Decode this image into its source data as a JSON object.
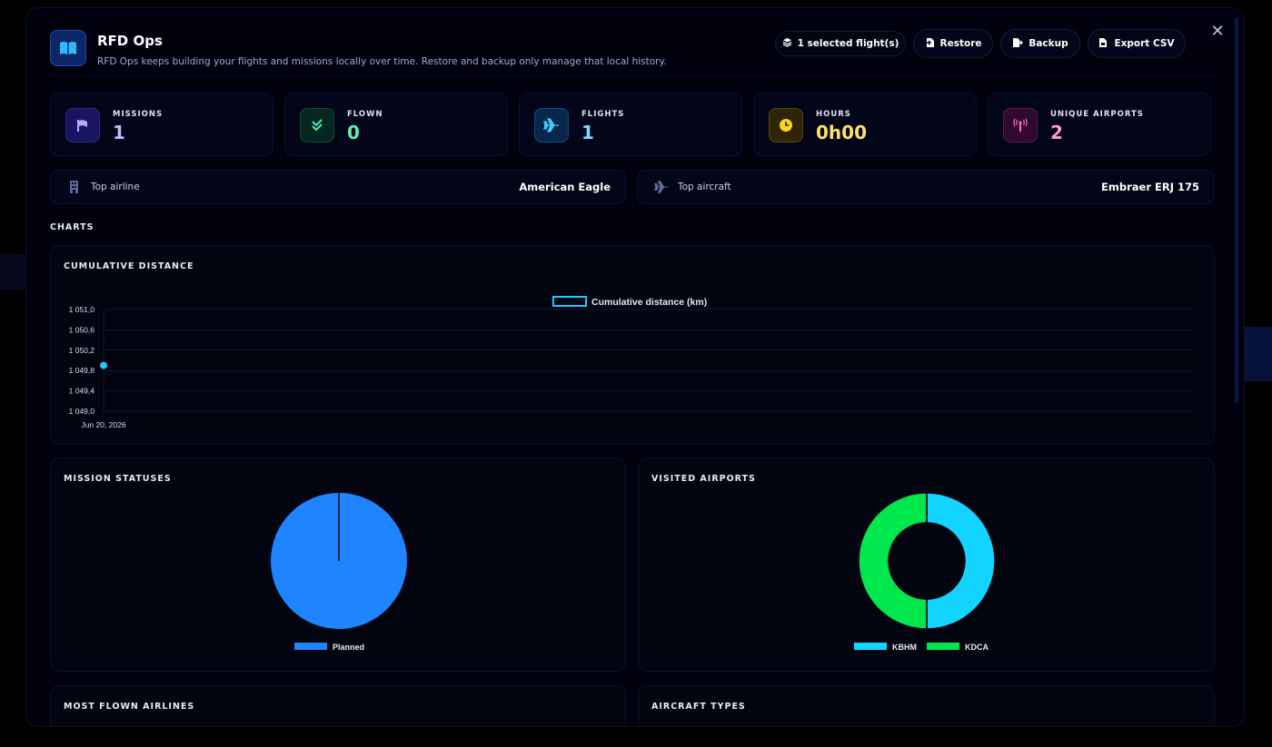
{
  "header": {
    "title": "RFD Ops",
    "subtitle": "RFD Ops keeps building your flights and missions locally over time. Restore and backup only manage that local history.",
    "selected_label": "1 selected flight(s)",
    "restore_label": "Restore",
    "backup_label": "Backup",
    "export_label": "Export CSV",
    "close_glyph": "✕"
  },
  "stats": [
    {
      "label": "MISSIONS",
      "value": "1",
      "color": "#c9b8ff",
      "icon": "flag-icon"
    },
    {
      "label": "FLOWN",
      "value": "0",
      "color": "#5df0b0",
      "icon": "double-check-icon"
    },
    {
      "label": "FLIGHTS",
      "value": "1",
      "color": "#7fdcff",
      "icon": "plane-icon"
    },
    {
      "label": "HOURS",
      "value": "0h00",
      "color": "#ffe066",
      "icon": "clock-icon"
    },
    {
      "label": "UNIQUE AIRPORTS",
      "value": "2",
      "color": "#ff9ad8",
      "icon": "antenna-icon"
    }
  ],
  "top": {
    "airline_label": "Top airline",
    "airline_value": "American Eagle",
    "aircraft_label": "Top aircraft",
    "aircraft_value": "Embraer ERJ 175"
  },
  "charts_section_title": "CHARTS",
  "chart_data": [
    {
      "type": "line",
      "title": "CUMULATIVE DISTANCE",
      "series": [
        {
          "name": "Cumulative distance (km)",
          "values": [
            1049.9
          ],
          "color": "#1ec8ff"
        }
      ],
      "x": [
        "Jun 20, 2026"
      ],
      "ylim": [
        1049.0,
        1051.0
      ],
      "yticks": [
        "1 051,0",
        "1 050,6",
        "1 050,2",
        "1 049,8",
        "1 049,4",
        "1 049,0"
      ],
      "legend": "top-center",
      "grid": true
    },
    {
      "type": "pie",
      "title": "MISSION STATUSES",
      "categories": [
        "Planned"
      ],
      "values": [
        1
      ],
      "colors": [
        "#1e84ff"
      ],
      "legend": "bottom"
    },
    {
      "type": "pie",
      "title": "VISITED AIRPORTS",
      "categories": [
        "KBHM",
        "KDCA"
      ],
      "values": [
        1,
        1
      ],
      "colors": [
        "#12d4ff",
        "#00e64d"
      ],
      "legend": "bottom"
    }
  ],
  "lower_cards": {
    "airlines_title": "MOST FLOWN AIRLINES",
    "aircraft_title": "AIRCRAFT TYPES"
  }
}
